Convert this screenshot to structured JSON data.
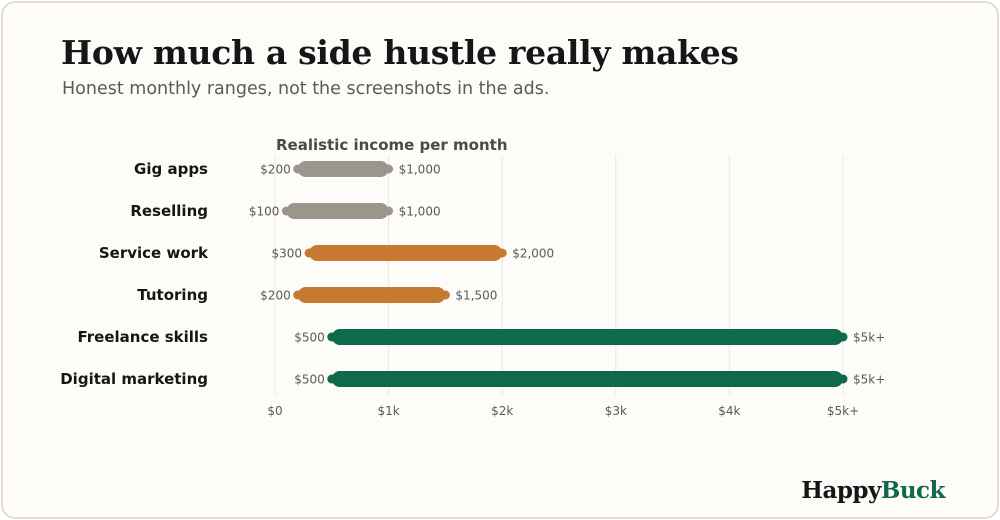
{
  "header": {
    "title": "How much a side hustle really makes",
    "subtitle": "Honest monthly ranges, not the screenshots in the ads."
  },
  "brand": {
    "part1": "Happy",
    "part2": "Buck"
  },
  "colors": {
    "low": "#9b958b",
    "mid": "#c57a30",
    "high": "#0f6a4b",
    "grid": "#ebe7df",
    "tick_text": "#5a5a5a"
  },
  "chart_data": {
    "type": "range-bar",
    "title": "Realistic income per month",
    "orientation": "horizontal",
    "xlim": [
      0,
      5000
    ],
    "x_ticks": [
      {
        "value": 0,
        "label": "$0"
      },
      {
        "value": 1000,
        "label": "$1k"
      },
      {
        "value": 2000,
        "label": "$2k"
      },
      {
        "value": 3000,
        "label": "$3k"
      },
      {
        "value": 4000,
        "label": "$4k"
      },
      {
        "value": 5000,
        "label": "$5k+"
      }
    ],
    "grid": true,
    "series": [
      {
        "category": "Gig apps",
        "min": 200,
        "max": 1000,
        "min_label": "$200",
        "max_label": "$1,000",
        "tier": "low"
      },
      {
        "category": "Reselling",
        "min": 100,
        "max": 1000,
        "min_label": "$100",
        "max_label": "$1,000",
        "tier": "low"
      },
      {
        "category": "Service work",
        "min": 300,
        "max": 2000,
        "min_label": "$300",
        "max_label": "$2,000",
        "tier": "mid"
      },
      {
        "category": "Tutoring",
        "min": 200,
        "max": 1500,
        "min_label": "$200",
        "max_label": "$1,500",
        "tier": "mid"
      },
      {
        "category": "Freelance skills",
        "min": 500,
        "max": 5000,
        "min_label": "$500",
        "max_label": "$5k+",
        "tier": "high"
      },
      {
        "category": "Digital marketing",
        "min": 500,
        "max": 5000,
        "min_label": "$500",
        "max_label": "$5k+",
        "tier": "high"
      }
    ]
  }
}
